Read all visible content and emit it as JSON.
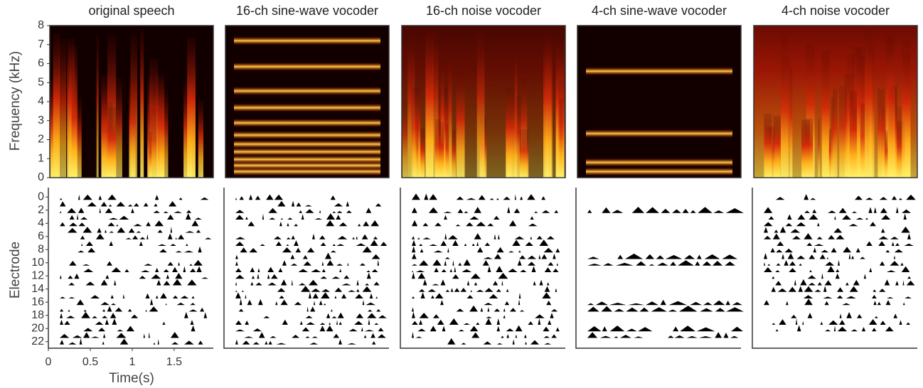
{
  "chart_data": [
    {
      "type": "spectrogram",
      "panels": [
        "original speech",
        "16-ch sine-wave vocoder",
        "16-ch noise vocoder",
        "4-ch sine-wave vocoder",
        "4-ch noise vocoder"
      ],
      "ylabel": "Frequency (kHz)",
      "ylim": [
        0,
        8
      ],
      "yticks": [
        0,
        1,
        2,
        3,
        4,
        5,
        6,
        7,
        8
      ]
    },
    {
      "type": "electrodogram",
      "ylabel": "Electrode",
      "ylim": [
        23,
        -1
      ],
      "yticks": [
        0,
        2,
        4,
        6,
        8,
        10,
        12,
        14,
        16,
        18,
        20,
        22
      ],
      "xlabel": "Time(s)",
      "xlim": [
        0,
        1.95
      ],
      "xticks": [
        0,
        0.5,
        1,
        1.5
      ]
    }
  ]
}
